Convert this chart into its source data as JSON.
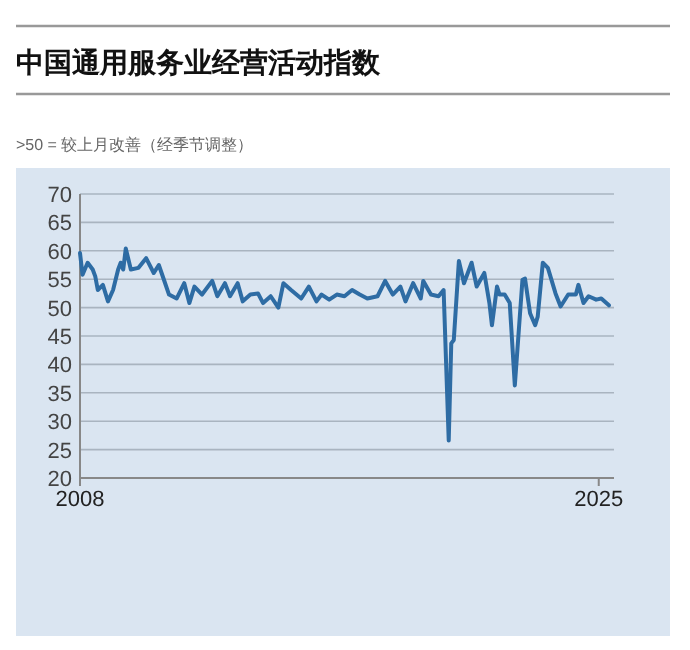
{
  "chart_data": {
    "type": "line",
    "title": "中国通用服务业经营活动指数",
    "subtitle": ">50 = 较上月改善（经季节调整）",
    "x": [
      "2008-01",
      "2008-02",
      "2008-04",
      "2008-06",
      "2008-07",
      "2008-08",
      "2008-10",
      "2008-12",
      "2009-02",
      "2009-04",
      "2009-05",
      "2009-06",
      "2009-07",
      "2009-09",
      "2009-12",
      "2010-03",
      "2010-06",
      "2010-08",
      "2010-10",
      "2010-12",
      "2011-03",
      "2011-06",
      "2011-08",
      "2011-10",
      "2012-01",
      "2012-05",
      "2012-07",
      "2012-10",
      "2012-12",
      "2013-03",
      "2013-05",
      "2013-08",
      "2013-11",
      "2014-01",
      "2014-04",
      "2014-07",
      "2014-09",
      "2014-12",
      "2015-04",
      "2015-07",
      "2015-10",
      "2015-12",
      "2016-03",
      "2016-06",
      "2016-09",
      "2016-12",
      "2017-03",
      "2017-06",
      "2017-10",
      "2018-01",
      "2018-04",
      "2018-07",
      "2018-09",
      "2018-12",
      "2019-03",
      "2019-04",
      "2019-07",
      "2019-10",
      "2019-12",
      "2020-02",
      "2020-03",
      "2020-04",
      "2020-06",
      "2020-08",
      "2020-11",
      "2021-01",
      "2021-04",
      "2021-06",
      "2021-07",
      "2021-09",
      "2021-10",
      "2021-12",
      "2022-02",
      "2022-04",
      "2022-07",
      "2022-08",
      "2022-10",
      "2022-12",
      "2023-01",
      "2023-03",
      "2023-05",
      "2023-08",
      "2023-10",
      "2024-01",
      "2024-04",
      "2024-05",
      "2024-07",
      "2024-09",
      "2024-12",
      "2025-02",
      "2025-05"
    ],
    "series": [
      {
        "color": "#2e6ca4",
        "values": [
          59.6,
          55.8,
          57.9,
          56.7,
          55.5,
          53.1,
          54.0,
          51.1,
          53.1,
          56.7,
          57.9,
          56.7,
          60.4,
          56.7,
          57.0,
          58.7,
          56.1,
          57.5,
          54.9,
          52.3,
          51.6,
          54.3,
          50.8,
          53.7,
          52.3,
          54.7,
          52.0,
          54.3,
          52.0,
          54.3,
          51.1,
          52.3,
          52.5,
          50.8,
          52.0,
          50.0,
          54.3,
          53.1,
          51.6,
          53.7,
          51.1,
          52.3,
          51.4,
          52.3,
          52.0,
          53.1,
          52.3,
          51.6,
          52.0,
          54.7,
          52.3,
          53.7,
          51.1,
          54.3,
          51.6,
          54.7,
          52.3,
          52.0,
          53.1,
          26.6,
          43.7,
          44.3,
          58.2,
          54.3,
          57.9,
          53.7,
          56.1,
          50.8,
          46.9,
          53.7,
          52.3,
          52.3,
          50.8,
          36.3,
          54.9,
          55.1,
          49.0,
          46.9,
          48.4,
          57.9,
          57.0,
          52.5,
          50.2,
          52.3,
          52.3,
          54.0,
          50.8,
          52.0,
          51.4,
          51.6,
          50.4
        ]
      }
    ],
    "xlim": [
      "2008-01",
      "2025-07"
    ],
    "xticks": [
      {
        "value": "2008-01",
        "label": "2008"
      },
      {
        "value": "2025-01",
        "label": "2025"
      }
    ],
    "ylim": [
      20,
      70
    ],
    "yticks": [
      20,
      25,
      30,
      35,
      40,
      45,
      50,
      55,
      60,
      65,
      70
    ],
    "grid": "y",
    "marker": "none",
    "line_style": "solid"
  }
}
